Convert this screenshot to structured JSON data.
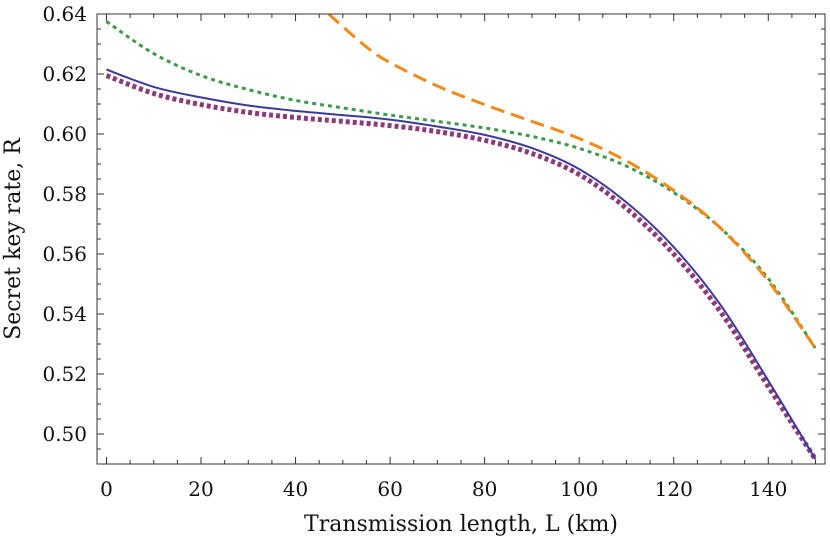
{
  "chart_data": {
    "type": "line",
    "title": "",
    "xlabel": "Transmission length, L (km)",
    "ylabel": "Secret key rate, R",
    "xlim": [
      -2,
      152
    ],
    "ylim": [
      0.49,
      0.64
    ],
    "xticks": [
      0,
      20,
      40,
      60,
      80,
      100,
      120,
      140
    ],
    "yticks": [
      0.5,
      0.52,
      0.54,
      0.56,
      0.58,
      0.6,
      0.62,
      0.64
    ],
    "xtick_labels": [
      "0",
      "20",
      "40",
      "60",
      "80",
      "100",
      "120",
      "140"
    ],
    "ytick_labels": [
      "0.50",
      "0.52",
      "0.54",
      "0.56",
      "0.58",
      "0.60",
      "0.62",
      "0.64"
    ],
    "grid": false,
    "legend": "none",
    "series": [
      {
        "color": "#3b3b9a",
        "style": "solid",
        "x": [
          0,
          10,
          20,
          30,
          40,
          50,
          60,
          70,
          80,
          90,
          100,
          110,
          120,
          130,
          140,
          150
        ],
        "y": [
          0.6215,
          0.6157,
          0.6122,
          0.6095,
          0.6077,
          0.6063,
          0.6048,
          0.6025,
          0.5997,
          0.5953,
          0.5883,
          0.5772,
          0.5623,
          0.5428,
          0.5178,
          0.4915
        ]
      },
      {
        "color": "#8e3a7a",
        "style": "thick-dotted",
        "x": [
          0,
          10,
          20,
          30,
          40,
          50,
          60,
          70,
          80,
          90,
          100,
          110,
          120,
          130,
          140,
          150
        ],
        "y": [
          0.6195,
          0.6135,
          0.6098,
          0.6072,
          0.6055,
          0.6042,
          0.6028,
          0.6008,
          0.5979,
          0.5935,
          0.5865,
          0.5752,
          0.56,
          0.5405,
          0.5158,
          0.4915
        ]
      },
      {
        "color": "#3d9a48",
        "style": "dotted",
        "x": [
          0,
          10,
          20,
          30,
          40,
          50,
          60,
          70,
          80,
          90,
          100,
          110,
          120,
          130,
          140,
          150
        ],
        "y": [
          0.6375,
          0.6268,
          0.6195,
          0.6148,
          0.6112,
          0.6087,
          0.6063,
          0.6042,
          0.602,
          0.5992,
          0.5952,
          0.5893,
          0.5805,
          0.5685,
          0.5518,
          0.5285
        ]
      },
      {
        "color": "#f28a18",
        "style": "dashed",
        "x": [
          47,
          55,
          60,
          70,
          80,
          90,
          100,
          110,
          120,
          130,
          140,
          150
        ],
        "y": [
          0.64,
          0.629,
          0.6238,
          0.616,
          0.6098,
          0.6042,
          0.5985,
          0.591,
          0.5812,
          0.5685,
          0.551,
          0.5285
        ]
      }
    ]
  }
}
